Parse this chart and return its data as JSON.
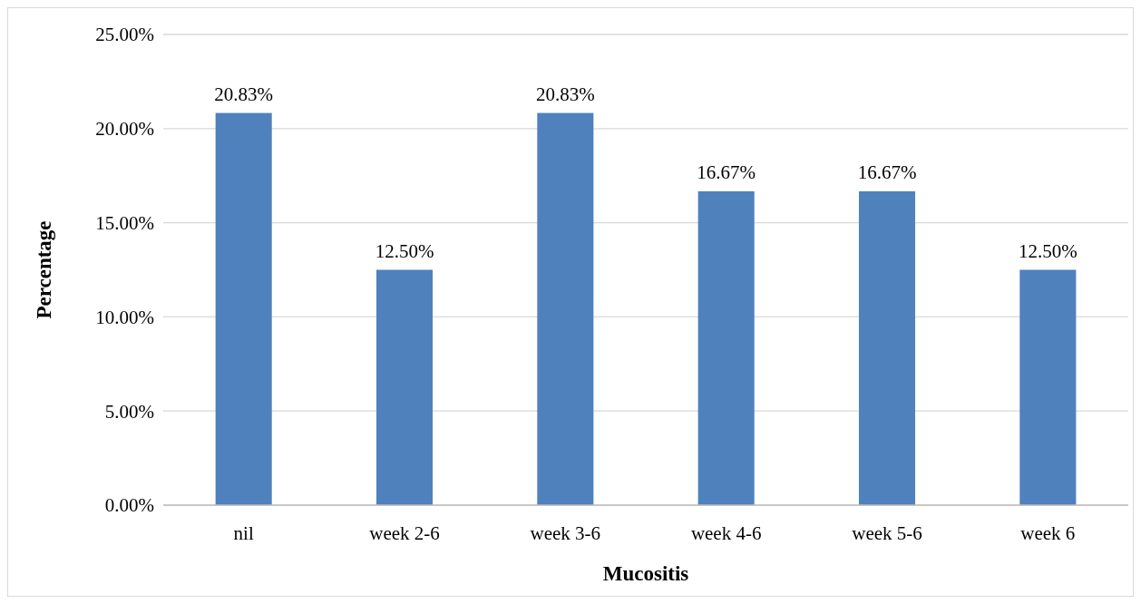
{
  "chart_data": {
    "type": "bar",
    "xlabel": "Mucositis",
    "ylabel": "Percentage",
    "categories": [
      "nil",
      "week 2-6",
      "week 3-6",
      "week 4-6",
      "week 5-6",
      "week 6"
    ],
    "values": [
      20.83,
      12.5,
      20.83,
      16.67,
      16.67,
      12.5
    ],
    "value_labels": [
      "20.83%",
      "12.50%",
      "20.83%",
      "16.67%",
      "16.67%",
      "12.50%"
    ],
    "color": "#4f81bd",
    "ylim": [
      0,
      25
    ],
    "yticks": [
      {
        "value": 0,
        "label": "0.00%"
      },
      {
        "value": 5,
        "label": "5.00%"
      },
      {
        "value": 10,
        "label": "10.00%"
      },
      {
        "value": 15,
        "label": "15.00%"
      },
      {
        "value": 20,
        "label": "20.00%"
      },
      {
        "value": 25,
        "label": "25.00%"
      }
    ],
    "grid": "y"
  }
}
